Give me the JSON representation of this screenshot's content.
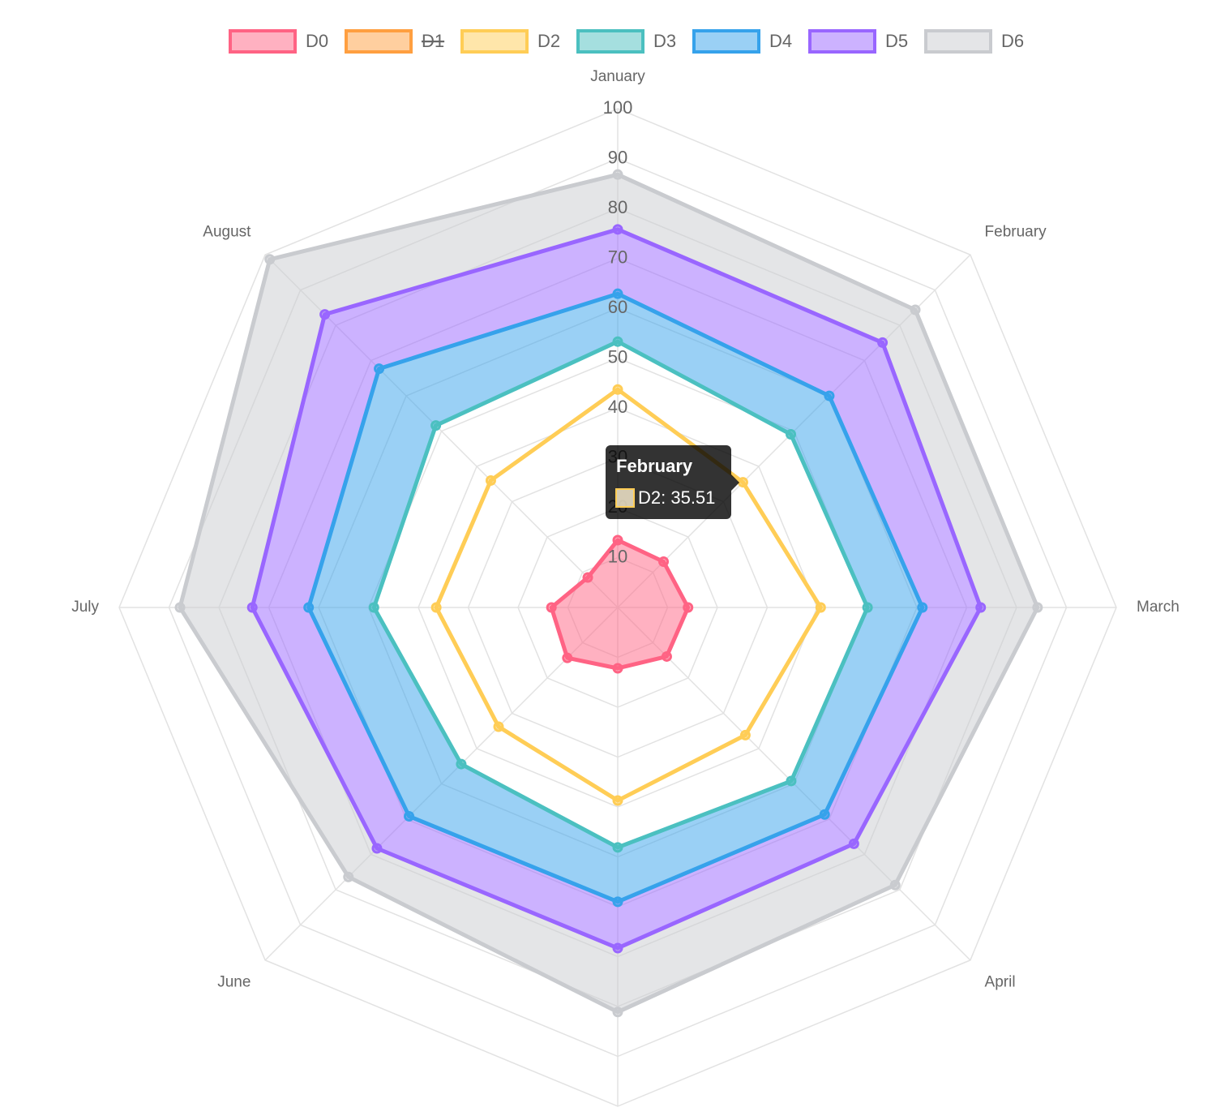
{
  "chart_data": {
    "type": "radar",
    "categories": [
      "January",
      "February",
      "March",
      "April",
      null,
      "June",
      "July",
      "August"
    ],
    "rlim": [
      0,
      100
    ],
    "rticks": [
      10,
      20,
      30,
      40,
      50,
      60,
      70,
      80,
      90,
      100
    ],
    "grid": true,
    "legend": "top",
    "series": [
      {
        "name": "D0",
        "color": "rgb(255, 99, 132)",
        "fill": "origin",
        "values": [
          13.5,
          13.0,
          14.1,
          13.9,
          12.2,
          14.3,
          13.3,
          8.5
        ]
      },
      {
        "name": "D1",
        "color": "rgb(255, 159, 64)",
        "hidden": true,
        "fill": -1,
        "values": [
          null,
          null,
          null,
          null,
          null,
          null,
          null,
          null
        ]
      },
      {
        "name": "D2",
        "color": "rgb(255, 205, 86)",
        "fill": 1,
        "values": [
          43.7,
          35.51,
          40.7,
          36.2,
          38.7,
          33.8,
          36.4,
          36.0
        ]
      },
      {
        "name": "D3",
        "color": "rgb(75, 192, 192)",
        "fill": false,
        "values": [
          53.3,
          49.1,
          50.1,
          49.2,
          48.1,
          44.4,
          48.9,
          51.6
        ]
      },
      {
        "name": "D4",
        "color": "rgb(54, 162, 235)",
        "fill": -1,
        "values": [
          62.9,
          60.0,
          61.1,
          58.7,
          59.0,
          59.2,
          62.0,
          67.7
        ]
      },
      {
        "name": "D5",
        "color": "rgb(153, 102, 255)",
        "fill": -1,
        "values": [
          75.8,
          75.1,
          72.8,
          67.0,
          68.3,
          68.3,
          73.3,
          83.1
        ]
      },
      {
        "name": "D6",
        "color": "rgb(201, 203, 207)",
        "fill": -1,
        "values": [
          86.8,
          84.4,
          84.2,
          78.7,
          81.1,
          76.4,
          87.8,
          98.7
        ]
      }
    ],
    "tooltip": {
      "title": "February",
      "series": 2,
      "label": "D2: 35.51"
    }
  }
}
